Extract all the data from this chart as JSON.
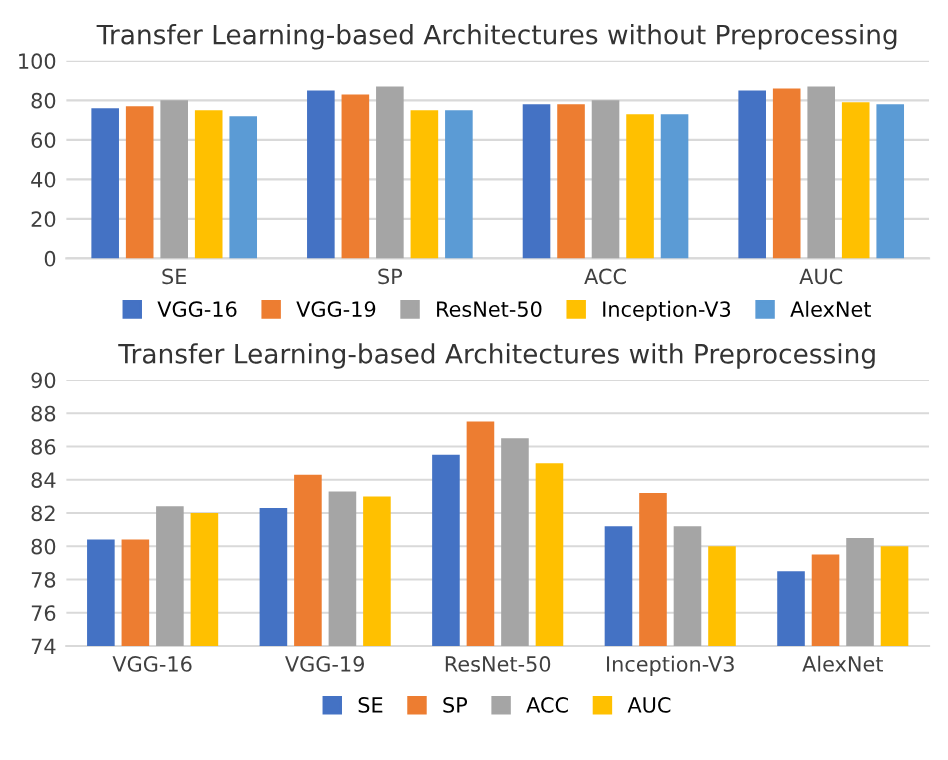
{
  "chart_data": [
    {
      "type": "bar",
      "title": "Transfer Learning-based Architectures without Preprocessing",
      "categories": [
        "SE",
        "SP",
        "ACC",
        "AUC"
      ],
      "series": [
        {
          "name": "VGG-16",
          "color": "#4472c4",
          "values": [
            76,
            85,
            78,
            85
          ]
        },
        {
          "name": "VGG-19",
          "color": "#ed7d31",
          "values": [
            77,
            83,
            78,
            86
          ]
        },
        {
          "name": "ResNet-50",
          "color": "#a5a5a5",
          "values": [
            80,
            87,
            80,
            87
          ]
        },
        {
          "name": "Inception-V3",
          "color": "#ffc000",
          "values": [
            75,
            75,
            73,
            79
          ]
        },
        {
          "name": "AlexNet",
          "color": "#5b9bd5",
          "values": [
            72,
            75,
            73,
            78
          ]
        }
      ],
      "ylim": [
        0,
        100
      ],
      "yticks": [
        0,
        20,
        40,
        60,
        80,
        100
      ],
      "grid": "y",
      "legend": "bottom"
    },
    {
      "type": "bar",
      "title": "Transfer Learning-based Architectures with Preprocessing",
      "categories": [
        "VGG-16",
        "VGG-19",
        "ResNet-50",
        "Inception-V3",
        "AlexNet"
      ],
      "series": [
        {
          "name": "SE",
          "color": "#4472c4",
          "values": [
            80.4,
            82.3,
            85.5,
            81.2,
            78.5
          ]
        },
        {
          "name": "SP",
          "color": "#ed7d31",
          "values": [
            80.4,
            84.3,
            87.5,
            83.2,
            79.5
          ]
        },
        {
          "name": "ACC",
          "color": "#a5a5a5",
          "values": [
            82.4,
            83.3,
            86.5,
            81.2,
            80.5
          ]
        },
        {
          "name": "AUC",
          "color": "#ffc000",
          "values": [
            82,
            83,
            85,
            80,
            80
          ]
        }
      ],
      "ylim": [
        74,
        90
      ],
      "yticks": [
        74,
        76,
        78,
        80,
        82,
        84,
        86,
        88,
        90
      ],
      "grid": "y",
      "legend": "bottom"
    }
  ]
}
